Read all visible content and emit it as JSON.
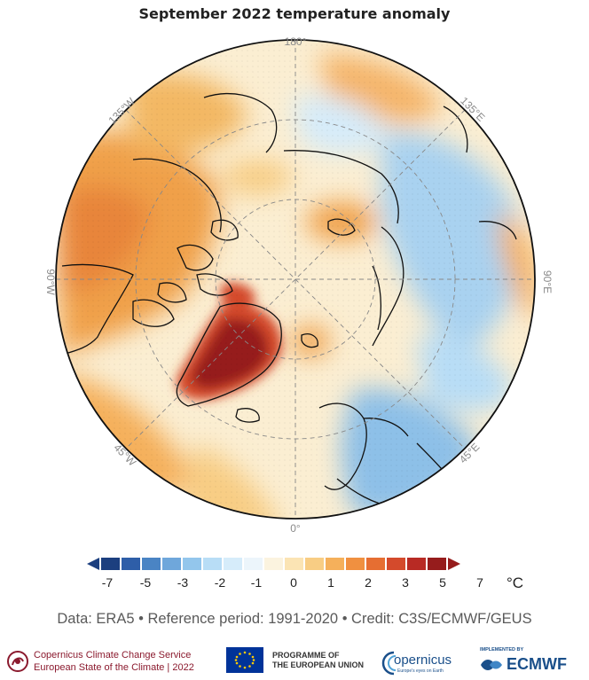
{
  "title": "September 2022 temperature anomaly",
  "map": {
    "projection": "north-polar stereographic",
    "longitude_labels": {
      "top": "180°",
      "upper_left": "135°W",
      "upper_right": "135°E",
      "left": "90°W",
      "right": "90°E",
      "lower_left": "45°W",
      "lower_right": "45°E",
      "bottom": "0°"
    },
    "region_anomalies": [
      {
        "region": "Greenland",
        "level": "strong warm",
        "color": "#a61c1c"
      },
      {
        "region": "Canada / North America",
        "level": "warm",
        "color": "#f0a04a"
      },
      {
        "region": "Alaska",
        "level": "warm",
        "color": "#f2b35e"
      },
      {
        "region": "Northern Europe",
        "level": "cool",
        "color": "#9ccbee"
      },
      {
        "region": "Western Siberia",
        "level": "cool",
        "color": "#b7dcf4"
      },
      {
        "region": "Eastern Siberia",
        "level": "slightly warm",
        "color": "#f7d9a0"
      },
      {
        "region": "Arctic Ocean",
        "level": "near normal",
        "color": "#fbeed2"
      }
    ]
  },
  "colorbar": {
    "unit": "°C",
    "colors": [
      "#1c3f7f",
      "#2e5ea8",
      "#4a84c4",
      "#6fa7db",
      "#93c6ec",
      "#b8ddf6",
      "#d6ecfa",
      "#ecf5fb",
      "#fbf3df",
      "#fbe4b4",
      "#f8cd84",
      "#f5b05b",
      "#f09040",
      "#e66e32",
      "#d44a2c",
      "#b82a24",
      "#961c1c"
    ],
    "tick_labels": [
      "-7",
      "-5",
      "-3",
      "-2",
      "-1",
      "0",
      "1",
      "2",
      "3",
      "5",
      "7"
    ]
  },
  "source_line": "Data: ERA5 • Reference period: 1991-2020 • Credit: C3S/ECMWF/GEUS",
  "footer": {
    "c3s_line1": "Copernicus Climate Change Service",
    "c3s_line2": "European State of the Climate | 2022",
    "eu_line1": "PROGRAMME OF",
    "eu_line2": "THE EUROPEAN UNION",
    "copernicus": "opernicus",
    "copernicus_sub": "Europe's eyes on Earth",
    "ecmwf_small": "IMPLEMENTED BY",
    "ecmwf": "ECMWF"
  }
}
